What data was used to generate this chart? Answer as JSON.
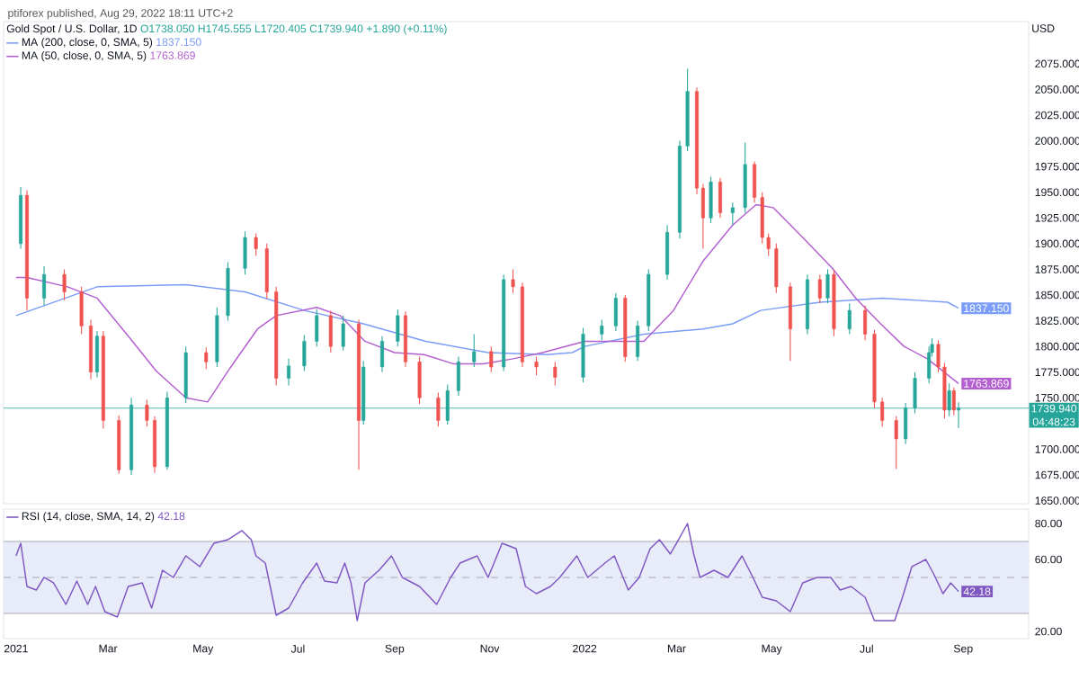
{
  "chart_data": [
    {
      "type": "candlestick",
      "title": "Gold Spot / U.S. Dollar, 1D",
      "subtitle": "O1738.050 H1745.555 L1720.405 C1739.940 +1.890 (+0.11%)",
      "ylabel": "USD",
      "annotations": [
        "ptiforex published, Aug 29, 2022 18:11 UTC+2",
        "04:48:23"
      ],
      "x": [
        "2021-01-04",
        "2021-01-08",
        "2021-01-19",
        "2021-02-01",
        "2021-02-12",
        "2021-02-18",
        "2021-02-22",
        "2021-02-26",
        "2021-03-08",
        "2021-03-16",
        "2021-03-26",
        "2021-03-31",
        "2021-04-08",
        "2021-04-20",
        "2021-05-03",
        "2021-05-10",
        "2021-05-17",
        "2021-05-28",
        "2021-06-04",
        "2021-06-11",
        "2021-06-17",
        "2021-06-25",
        "2021-07-05",
        "2021-07-13",
        "2021-07-22",
        "2021-07-30",
        "2021-08-09",
        "2021-08-12",
        "2021-08-24",
        "2021-09-03",
        "2021-09-08",
        "2021-09-17",
        "2021-09-29",
        "2021-10-05",
        "2021-10-12",
        "2021-10-22",
        "2021-11-02",
        "2021-11-10",
        "2021-11-16",
        "2021-11-22",
        "2021-12-01",
        "2021-12-13",
        "2021-12-31",
        "2022-01-12",
        "2022-01-21",
        "2022-01-27",
        "2022-02-04",
        "2022-02-11",
        "2022-02-23",
        "2022-03-03",
        "2022-03-08",
        "2022-03-14",
        "2022-03-18",
        "2022-03-23",
        "2022-03-29",
        "2022-04-06",
        "2022-04-14",
        "2022-04-20",
        "2022-04-25",
        "2022-04-29",
        "2022-05-04",
        "2022-05-13",
        "2022-05-24",
        "2022-06-01",
        "2022-06-06",
        "2022-06-10",
        "2022-06-20",
        "2022-06-30",
        "2022-07-06",
        "2022-07-11",
        "2022-07-20",
        "2022-07-26",
        "2022-08-01",
        "2022-08-10",
        "2022-08-12",
        "2022-08-16",
        "2022-08-20",
        "2022-08-23",
        "2022-08-26",
        "2022-08-29"
      ],
      "ohlc": [
        [
          1900,
          1955,
          1895,
          1947
        ],
        [
          1947,
          1952,
          1835,
          1847
        ],
        [
          1847,
          1878,
          1840,
          1870
        ],
        [
          1870,
          1875,
          1845,
          1853
        ],
        [
          1853,
          1858,
          1812,
          1820
        ],
        [
          1820,
          1826,
          1768,
          1775
        ],
        [
          1775,
          1815,
          1770,
          1810
        ],
        [
          1810,
          1815,
          1720,
          1728
        ],
        [
          1728,
          1733,
          1676,
          1680
        ],
        [
          1680,
          1750,
          1675,
          1743
        ],
        [
          1743,
          1748,
          1722,
          1728
        ],
        [
          1728,
          1732,
          1677,
          1683
        ],
        [
          1683,
          1756,
          1680,
          1750
        ],
        [
          1750,
          1800,
          1745,
          1794
        ],
        [
          1794,
          1799,
          1778,
          1785
        ],
        [
          1785,
          1838,
          1780,
          1830
        ],
        [
          1830,
          1882,
          1825,
          1876
        ],
        [
          1876,
          1912,
          1870,
          1906
        ],
        [
          1906,
          1910,
          1888,
          1895
        ],
        [
          1895,
          1900,
          1846,
          1853
        ],
        [
          1853,
          1858,
          1762,
          1769
        ],
        [
          1769,
          1788,
          1762,
          1781
        ],
        [
          1781,
          1811,
          1776,
          1805
        ],
        [
          1805,
          1836,
          1800,
          1830
        ],
        [
          1830,
          1835,
          1794,
          1800
        ],
        [
          1800,
          1830,
          1796,
          1822
        ],
        [
          1822,
          1826,
          1680,
          1728
        ],
        [
          1728,
          1786,
          1724,
          1780
        ],
        [
          1780,
          1810,
          1775,
          1805
        ],
        [
          1805,
          1836,
          1800,
          1830
        ],
        [
          1830,
          1834,
          1780,
          1785
        ],
        [
          1785,
          1790,
          1744,
          1750
        ],
        [
          1750,
          1755,
          1722,
          1728
        ],
        [
          1728,
          1763,
          1724,
          1757
        ],
        [
          1757,
          1790,
          1752,
          1785
        ],
        [
          1785,
          1812,
          1780,
          1795
        ],
        [
          1795,
          1800,
          1775,
          1780
        ],
        [
          1780,
          1870,
          1776,
          1865
        ],
        [
          1865,
          1875,
          1852,
          1858
        ],
        [
          1858,
          1862,
          1780,
          1785
        ],
        [
          1785,
          1790,
          1772,
          1780
        ],
        [
          1780,
          1785,
          1762,
          1770
        ],
        [
          1770,
          1818,
          1765,
          1812
        ],
        [
          1812,
          1826,
          1806,
          1820
        ],
        [
          1820,
          1852,
          1815,
          1847
        ],
        [
          1847,
          1850,
          1785,
          1790
        ],
        [
          1790,
          1825,
          1786,
          1820
        ],
        [
          1820,
          1875,
          1815,
          1870
        ],
        [
          1870,
          1918,
          1865,
          1911
        ],
        [
          1911,
          2000,
          1905,
          1995
        ],
        [
          1995,
          2070,
          1990,
          2048
        ],
        [
          2048,
          2052,
          1948,
          1954
        ],
        [
          1954,
          1958,
          1895,
          1925
        ],
        [
          1925,
          1965,
          1920,
          1960
        ],
        [
          1960,
          1964,
          1925,
          1930
        ],
        [
          1930,
          1940,
          1918,
          1935
        ],
        [
          1935,
          1998,
          1930,
          1977
        ],
        [
          1977,
          1980,
          1940,
          1945
        ],
        [
          1945,
          1950,
          1900,
          1906
        ],
        [
          1906,
          1910,
          1888,
          1895
        ],
        [
          1895,
          1900,
          1852,
          1858
        ],
        [
          1858,
          1862,
          1786,
          1817
        ],
        [
          1817,
          1870,
          1812,
          1865
        ],
        [
          1865,
          1870,
          1842,
          1847
        ],
        [
          1847,
          1875,
          1842,
          1870
        ],
        [
          1870,
          1874,
          1810,
          1817
        ],
        [
          1817,
          1842,
          1812,
          1835
        ],
        [
          1835,
          1840,
          1806,
          1812
        ],
        [
          1812,
          1816,
          1740,
          1746
        ],
        [
          1746,
          1750,
          1722,
          1728
        ],
        [
          1728,
          1732,
          1681,
          1710
        ],
        [
          1710,
          1745,
          1705,
          1740
        ],
        [
          1740,
          1775,
          1735,
          1769
        ],
        [
          1769,
          1800,
          1764,
          1794
        ],
        [
          1794,
          1808,
          1790,
          1802
        ],
        [
          1802,
          1806,
          1775,
          1780
        ],
        [
          1780,
          1784,
          1730,
          1738
        ],
        [
          1738,
          1764,
          1732,
          1757
        ],
        [
          1757,
          1760,
          1733,
          1738.05
        ],
        [
          1738.05,
          1745.555,
          1720.405,
          1739.94
        ]
      ],
      "colors": [
        "#26a69a",
        "#ef5350",
        "#26a69a",
        "#ef5350",
        "#ef5350",
        "#ef5350",
        "#26a69a",
        "#ef5350",
        "#ef5350",
        "#26a69a",
        "#ef5350",
        "#ef5350",
        "#26a69a",
        "#26a69a",
        "#ef5350",
        "#26a69a",
        "#26a69a",
        "#26a69a",
        "#ef5350",
        "#ef5350",
        "#ef5350",
        "#26a69a",
        "#26a69a",
        "#26a69a",
        "#ef5350",
        "#26a69a",
        "#ef5350",
        "#26a69a",
        "#26a69a",
        "#26a69a",
        "#ef5350",
        "#ef5350",
        "#ef5350",
        "#26a69a",
        "#26a69a",
        "#26a69a",
        "#ef5350",
        "#26a69a",
        "#ef5350",
        "#ef5350",
        "#ef5350",
        "#ef5350",
        "#26a69a",
        "#26a69a",
        "#26a69a",
        "#ef5350",
        "#26a69a",
        "#26a69a",
        "#26a69a",
        "#26a69a",
        "#26a69a",
        "#ef5350",
        "#ef5350",
        "#26a69a",
        "#ef5350",
        "#26a69a",
        "#26a69a",
        "#ef5350",
        "#ef5350",
        "#ef5350",
        "#ef5350",
        "#ef5350",
        "#26a69a",
        "#ef5350",
        "#26a69a",
        "#ef5350",
        "#26a69a",
        "#ef5350",
        "#ef5350",
        "#ef5350",
        "#ef5350",
        "#26a69a",
        "#26a69a",
        "#26a69a",
        "#26a69a",
        "#ef5350",
        "#ef5350",
        "#26a69a",
        "#ef5350",
        "#26a69a"
      ],
      "series": [
        {
          "name": "MA (200, close, 0, SMA, 5)",
          "type": "line",
          "color": "#7b9df8",
          "x": [
            "2021-01-01",
            "2021-02-22",
            "2021-04-20",
            "2021-05-28",
            "2021-07-05",
            "2021-08-12",
            "2021-09-21",
            "2021-10-31",
            "2021-12-08",
            "2021-12-24",
            "2022-01-01",
            "2022-02-08",
            "2022-03-18",
            "2022-04-06",
            "2022-04-24",
            "2022-06-01",
            "2022-07-11",
            "2022-08-22",
            "2022-08-29"
          ],
          "values": [
            1830,
            1858,
            1860,
            1853,
            1835,
            1822,
            1805,
            1794,
            1792,
            1794,
            1800,
            1812,
            1817,
            1822,
            1835,
            1843,
            1847,
            1843,
            1837.15
          ],
          "value_labels": [
            null,
            null,
            null,
            null,
            null,
            null,
            null,
            null,
            null,
            null,
            null,
            null,
            null,
            null,
            null,
            null,
            null,
            null,
            "1837.150"
          ]
        },
        {
          "name": "MA (50, close, 0, SMA, 5)",
          "type": "line",
          "color": "#b45fd0",
          "x": [
            "2021-01-01",
            "2021-01-08",
            "2021-02-03",
            "2021-02-22",
            "2021-03-13",
            "2021-04-01",
            "2021-04-20",
            "2021-05-04",
            "2021-05-17",
            "2021-06-05",
            "2021-06-17",
            "2021-07-13",
            "2021-07-28",
            "2021-08-13",
            "2021-09-01",
            "2021-09-20",
            "2021-10-09",
            "2021-10-28",
            "2021-11-16",
            "2021-12-05",
            "2022-01-01",
            "2022-02-08",
            "2022-02-27",
            "2022-03-18",
            "2022-04-06",
            "2022-04-21",
            "2022-05-02",
            "2022-05-21",
            "2022-06-09",
            "2022-06-24",
            "2022-07-10",
            "2022-07-25",
            "2022-08-09",
            "2022-08-29"
          ],
          "values": [
            1867,
            1867,
            1858,
            1847,
            1812,
            1776,
            1750,
            1746,
            1776,
            1817,
            1830,
            1838,
            1830,
            1805,
            1794,
            1792,
            1783,
            1783,
            1788,
            1794,
            1805,
            1805,
            1835,
            1883,
            1918,
            1938,
            1935,
            1906,
            1876,
            1847,
            1822,
            1800,
            1788,
            1763.869
          ],
          "value_labels": [
            null,
            null,
            null,
            null,
            null,
            null,
            null,
            null,
            null,
            null,
            null,
            null,
            null,
            null,
            null,
            null,
            null,
            null,
            null,
            null,
            null,
            null,
            null,
            null,
            null,
            null,
            null,
            null,
            null,
            null,
            null,
            null,
            null,
            "1763.869"
          ]
        }
      ],
      "xlim": [
        "2020-12-24",
        "2022-10-13"
      ],
      "ylim": [
        1647,
        2116
      ],
      "yticks": [
        {
          "value": 1650,
          "label": "1650.000"
        },
        {
          "value": 1675,
          "label": "1675.000"
        },
        {
          "value": 1700,
          "label": "1700.000"
        },
        {
          "value": 1750,
          "label": "1750.000"
        },
        {
          "value": 1775,
          "label": "1775.000"
        },
        {
          "value": 1800,
          "label": "1800.000"
        },
        {
          "value": 1825,
          "label": "1825.000"
        },
        {
          "value": 1850,
          "label": "1850.000"
        },
        {
          "value": 1875,
          "label": "1875.000"
        },
        {
          "value": 1900,
          "label": "1900.000"
        },
        {
          "value": 1925,
          "label": "1925.000"
        },
        {
          "value": 1950,
          "label": "1950.000"
        },
        {
          "value": 1975,
          "label": "1975.000"
        },
        {
          "value": 2000,
          "label": "2000.000"
        },
        {
          "value": 2025,
          "label": "2025.000"
        },
        {
          "value": 2050,
          "label": "2050.000"
        },
        {
          "value": 2075,
          "label": "2075.000"
        }
      ],
      "tick_labels": "y",
      "ref_lines": [
        {
          "axis": "y",
          "value": 1739.94,
          "label": "1739.940",
          "color": "#26a69a"
        }
      ],
      "legend": "top left"
    },
    {
      "type": "line",
      "x": [
        "2021-01-01",
        "2021-01-04",
        "2021-01-08",
        "2021-01-14",
        "2021-01-19",
        "2021-01-25",
        "2021-02-02",
        "2021-02-09",
        "2021-02-16",
        "2021-02-21",
        "2021-02-27",
        "2021-03-07",
        "2021-03-14",
        "2021-03-23",
        "2021-03-29",
        "2021-04-05",
        "2021-04-12",
        "2021-04-20",
        "2021-04-29",
        "2021-05-08",
        "2021-05-17",
        "2021-05-26",
        "2021-06-01",
        "2021-06-04",
        "2021-06-10",
        "2021-06-17",
        "2021-06-25",
        "2021-07-04",
        "2021-07-13",
        "2021-07-18",
        "2021-07-26",
        "2021-07-31",
        "2021-08-04",
        "2021-08-08",
        "2021-08-13",
        "2021-08-22",
        "2021-08-30",
        "2021-09-06",
        "2021-09-17",
        "2021-09-28",
        "2021-10-07",
        "2021-10-13",
        "2021-10-24",
        "2021-10-31",
        "2021-11-09",
        "2021-11-18",
        "2021-11-24",
        "2021-12-01",
        "2021-12-10",
        "2021-12-16",
        "2021-12-27",
        "2022-01-03",
        "2022-01-14",
        "2022-01-20",
        "2022-01-29",
        "2022-02-05",
        "2022-02-12",
        "2022-02-18",
        "2022-02-25",
        "2022-03-01",
        "2022-03-08",
        "2022-03-12",
        "2022-03-16",
        "2022-03-25",
        "2022-04-03",
        "2022-04-12",
        "2022-04-19",
        "2022-04-25",
        "2022-05-04",
        "2022-05-13",
        "2022-05-21",
        "2022-05-30",
        "2022-06-08",
        "2022-06-14",
        "2022-06-21",
        "2022-06-30",
        "2022-07-06",
        "2022-07-13",
        "2022-07-19",
        "2022-07-24",
        "2022-07-30",
        "2022-08-08",
        "2022-08-13",
        "2022-08-19",
        "2022-08-24",
        "2022-08-29"
      ],
      "series": [
        {
          "name": "RSI (14, close, SMA, 14, 2)",
          "color": "#7e57c2",
          "values": [
            62,
            69,
            45,
            43,
            50,
            47,
            35,
            48,
            35,
            45,
            31,
            28,
            45,
            47,
            33,
            54,
            50,
            62,
            56,
            69,
            71,
            76,
            71,
            62,
            58,
            29,
            33,
            47,
            58,
            48,
            47,
            58,
            47,
            26,
            47,
            54,
            62,
            50,
            45,
            35,
            50,
            58,
            62,
            50,
            69,
            66,
            45,
            41,
            45,
            50,
            62,
            50,
            58,
            62,
            43,
            50,
            66,
            71,
            63,
            69,
            80,
            63,
            50,
            54,
            50,
            62,
            50,
            39,
            37,
            31,
            47,
            50,
            50,
            43,
            45,
            39,
            26,
            26,
            26,
            39,
            56,
            60,
            52,
            41,
            47,
            42.18
          ],
          "value_labels": [
            null,
            null,
            null,
            null,
            null,
            null,
            null,
            null,
            null,
            null,
            null,
            null,
            null,
            null,
            null,
            null,
            null,
            null,
            null,
            null,
            null,
            null,
            null,
            null,
            null,
            null,
            null,
            null,
            null,
            null,
            null,
            null,
            null,
            null,
            null,
            null,
            null,
            null,
            null,
            null,
            null,
            null,
            null,
            null,
            null,
            null,
            null,
            null,
            null,
            null,
            null,
            null,
            null,
            null,
            null,
            null,
            null,
            null,
            null,
            null,
            null,
            null,
            null,
            null,
            null,
            null,
            null,
            null,
            null,
            null,
            null,
            null,
            null,
            null,
            null,
            null,
            null,
            null,
            null,
            null,
            null,
            null,
            null,
            null,
            null,
            "42.18"
          ]
        }
      ],
      "xlim": [
        "2020-12-24",
        "2022-10-13"
      ],
      "ylim": [
        16,
        88
      ],
      "yticks": [
        {
          "value": 20,
          "label": "20.00"
        },
        {
          "value": 60,
          "label": "60.00"
        },
        {
          "value": 80,
          "label": "80.00"
        }
      ],
      "xticks": [
        {
          "value": "2021-01-01",
          "label": "2021"
        },
        {
          "value": "2021-03-01",
          "label": "Mar"
        },
        {
          "value": "2021-05-01",
          "label": "May"
        },
        {
          "value": "2021-07-01",
          "label": "Jul"
        },
        {
          "value": "2021-09-01",
          "label": "Sep"
        },
        {
          "value": "2021-11-01",
          "label": "Nov"
        },
        {
          "value": "2022-01-01",
          "label": "2022"
        },
        {
          "value": "2022-03-01",
          "label": "Mar"
        },
        {
          "value": "2022-05-01",
          "label": "May"
        },
        {
          "value": "2022-07-01",
          "label": "Jul"
        },
        {
          "value": "2022-09-01",
          "label": "Sep"
        }
      ],
      "bands": [
        {
          "axis": "y",
          "from": 30,
          "to": 70,
          "color": "#e8ebf8"
        }
      ],
      "ref_lines": [
        {
          "axis": "y",
          "value": 30,
          "color": "#9598a1"
        },
        {
          "axis": "y",
          "value": 70,
          "color": "#9598a1"
        },
        {
          "axis": "y",
          "value": 50,
          "line_style": "dashed",
          "color": "#9598a1"
        }
      ],
      "legend": "top left"
    }
  ]
}
